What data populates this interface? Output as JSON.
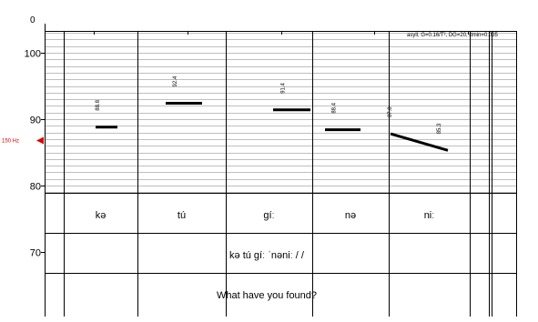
{
  "chart_data": {
    "type": "line",
    "title": "",
    "xlabel": "",
    "ylabel": "",
    "scale": "semitones",
    "ylim": [
      63,
      105
    ],
    "top_axis_zero_label": "0",
    "y_ticks": [
      100,
      90,
      80,
      70
    ],
    "y_tick_labels": [
      "100",
      "90",
      "80",
      "70"
    ],
    "reference": {
      "label": "150 Hz",
      "value": 86.8,
      "color": "#e00000"
    },
    "annotation": "asyll, G=0.16/T², DG=20, dmin=0.035",
    "syllables": [
      {
        "label": "kə",
        "start": 88.8,
        "end": 88.8,
        "value_labels": [
          "88.8"
        ]
      },
      {
        "label": "tú",
        "start": 92.4,
        "end": 92.4,
        "value_labels": [
          "92.4"
        ]
      },
      {
        "label": "gíː",
        "start": 91.4,
        "end": 91.4,
        "value_labels": [
          "91.4"
        ]
      },
      {
        "label": "nə",
        "start": 88.4,
        "end": 88.4,
        "value_labels": [
          "88.4"
        ]
      },
      {
        "label": "niː",
        "start": 87.8,
        "end": 85.3,
        "value_labels": [
          "87.8",
          "85.3"
        ]
      }
    ],
    "tiers": {
      "phrase": "kə tú gíː ˈnəniː / /",
      "translation": "What have you found?"
    }
  }
}
